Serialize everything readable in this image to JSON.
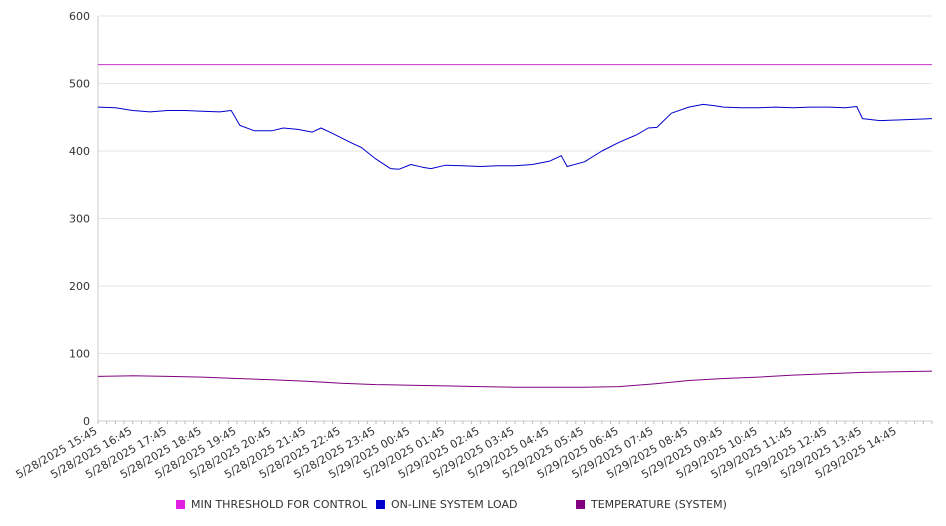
{
  "chart_data": {
    "type": "line",
    "title": "",
    "xlabel": "",
    "ylabel": "",
    "ylim": [
      0,
      600
    ],
    "y_ticks": [
      "0",
      "100",
      "200",
      "300",
      "400",
      "500",
      "600"
    ],
    "x_ticks": [
      "5/28/2025 15:45",
      "5/28/2025 16:45",
      "5/28/2025 17:45",
      "5/28/2025 18:45",
      "5/28/2025 19:45",
      "5/28/2025 20:45",
      "5/28/2025 21:45",
      "5/28/2025 22:45",
      "5/28/2025 23:45",
      "5/29/2025 00:45",
      "5/29/2025 01:45",
      "5/29/2025 02:45",
      "5/29/2025 03:45",
      "5/29/2025 04:45",
      "5/29/2025 05:45",
      "5/29/2025 06:45",
      "5/29/2025 07:45",
      "5/29/2025 08:45",
      "5/29/2025 09:45",
      "5/29/2025 10:45",
      "5/29/2025 11:45",
      "5/29/2025 12:45",
      "5/29/2025 13:45",
      "5/29/2025 14:45"
    ],
    "x_range": [
      "5/28/2025 15:45",
      "5/29/2025 15:45"
    ],
    "grid": "horizontal",
    "legend_position": "bottom",
    "series": [
      {
        "name": "MIN THRESHOLD FOR CONTROL",
        "color": "#cc33cc",
        "values": [
          [
            "5/28/2025 15:45",
            528
          ],
          [
            "5/29/2025 15:45",
            528
          ]
        ]
      },
      {
        "name": "ON-LINE SYSTEM LOAD",
        "color": "#0000cc",
        "values": [
          [
            "5/28/2025 15:45",
            465
          ],
          [
            "5/28/2025 16:15",
            464
          ],
          [
            "5/28/2025 16:45",
            460
          ],
          [
            "5/28/2025 17:15",
            458
          ],
          [
            "5/28/2025 17:45",
            460
          ],
          [
            "5/28/2025 18:15",
            460
          ],
          [
            "5/28/2025 18:45",
            459
          ],
          [
            "5/28/2025 19:15",
            458
          ],
          [
            "5/28/2025 19:35",
            460
          ],
          [
            "5/28/2025 19:50",
            438
          ],
          [
            "5/28/2025 20:15",
            430
          ],
          [
            "5/28/2025 20:45",
            430
          ],
          [
            "5/28/2025 21:05",
            434
          ],
          [
            "5/28/2025 21:30",
            432
          ],
          [
            "5/28/2025 21:55",
            428
          ],
          [
            "5/28/2025 22:10",
            434
          ],
          [
            "5/28/2025 22:30",
            426
          ],
          [
            "5/28/2025 23:00",
            413
          ],
          [
            "5/28/2025 23:20",
            405
          ],
          [
            "5/28/2025 23:45",
            388
          ],
          [
            "5/29/2025 00:10",
            374
          ],
          [
            "5/29/2025 00:25",
            373
          ],
          [
            "5/29/2025 00:45",
            380
          ],
          [
            "5/29/2025 01:05",
            376
          ],
          [
            "5/29/2025 01:20",
            374
          ],
          [
            "5/29/2025 01:45",
            379
          ],
          [
            "5/29/2025 02:15",
            378
          ],
          [
            "5/29/2025 02:45",
            377
          ],
          [
            "5/29/2025 03:15",
            378
          ],
          [
            "5/29/2025 03:45",
            378
          ],
          [
            "5/29/2025 04:15",
            380
          ],
          [
            "5/29/2025 04:45",
            385
          ],
          [
            "5/29/2025 05:05",
            393
          ],
          [
            "5/29/2025 05:15",
            377
          ],
          [
            "5/29/2025 05:45",
            384
          ],
          [
            "5/29/2025 06:15",
            400
          ],
          [
            "5/29/2025 06:45",
            413
          ],
          [
            "5/29/2025 07:15",
            424
          ],
          [
            "5/29/2025 07:35",
            434
          ],
          [
            "5/29/2025 07:50",
            435
          ],
          [
            "5/29/2025 08:15",
            456
          ],
          [
            "5/29/2025 08:45",
            465
          ],
          [
            "5/29/2025 09:10",
            469
          ],
          [
            "5/29/2025 09:30",
            467
          ],
          [
            "5/29/2025 09:45",
            465
          ],
          [
            "5/29/2025 10:15",
            464
          ],
          [
            "5/29/2025 10:45",
            464
          ],
          [
            "5/29/2025 11:15",
            465
          ],
          [
            "5/29/2025 11:45",
            464
          ],
          [
            "5/29/2025 12:15",
            465
          ],
          [
            "5/29/2025 12:45",
            465
          ],
          [
            "5/29/2025 13:15",
            464
          ],
          [
            "5/29/2025 13:35",
            466
          ],
          [
            "5/29/2025 13:45",
            448
          ],
          [
            "5/29/2025 14:15",
            445
          ],
          [
            "5/29/2025 14:45",
            446
          ],
          [
            "5/29/2025 15:45",
            448
          ]
        ]
      },
      {
        "name": "TEMPERATURE (SYSTEM)",
        "color": "#800080",
        "values": [
          [
            "5/28/2025 15:45",
            66
          ],
          [
            "5/28/2025 16:45",
            67
          ],
          [
            "5/28/2025 17:45",
            66
          ],
          [
            "5/28/2025 18:45",
            65
          ],
          [
            "5/28/2025 19:45",
            63
          ],
          [
            "5/28/2025 20:45",
            61
          ],
          [
            "5/28/2025 21:45",
            59
          ],
          [
            "5/28/2025 22:45",
            56
          ],
          [
            "5/28/2025 23:45",
            54
          ],
          [
            "5/29/2025 00:45",
            53
          ],
          [
            "5/29/2025 01:45",
            52
          ],
          [
            "5/29/2025 02:45",
            51
          ],
          [
            "5/29/2025 03:45",
            50
          ],
          [
            "5/29/2025 04:45",
            50
          ],
          [
            "5/29/2025 05:45",
            50
          ],
          [
            "5/29/2025 06:45",
            51
          ],
          [
            "5/29/2025 07:45",
            55
          ],
          [
            "5/29/2025 08:45",
            60
          ],
          [
            "5/29/2025 09:45",
            63
          ],
          [
            "5/29/2025 10:45",
            65
          ],
          [
            "5/29/2025 11:45",
            68
          ],
          [
            "5/29/2025 12:45",
            70
          ],
          [
            "5/29/2025 13:45",
            72
          ],
          [
            "5/29/2025 14:45",
            73
          ],
          [
            "5/29/2025 15:45",
            74
          ]
        ]
      }
    ]
  }
}
